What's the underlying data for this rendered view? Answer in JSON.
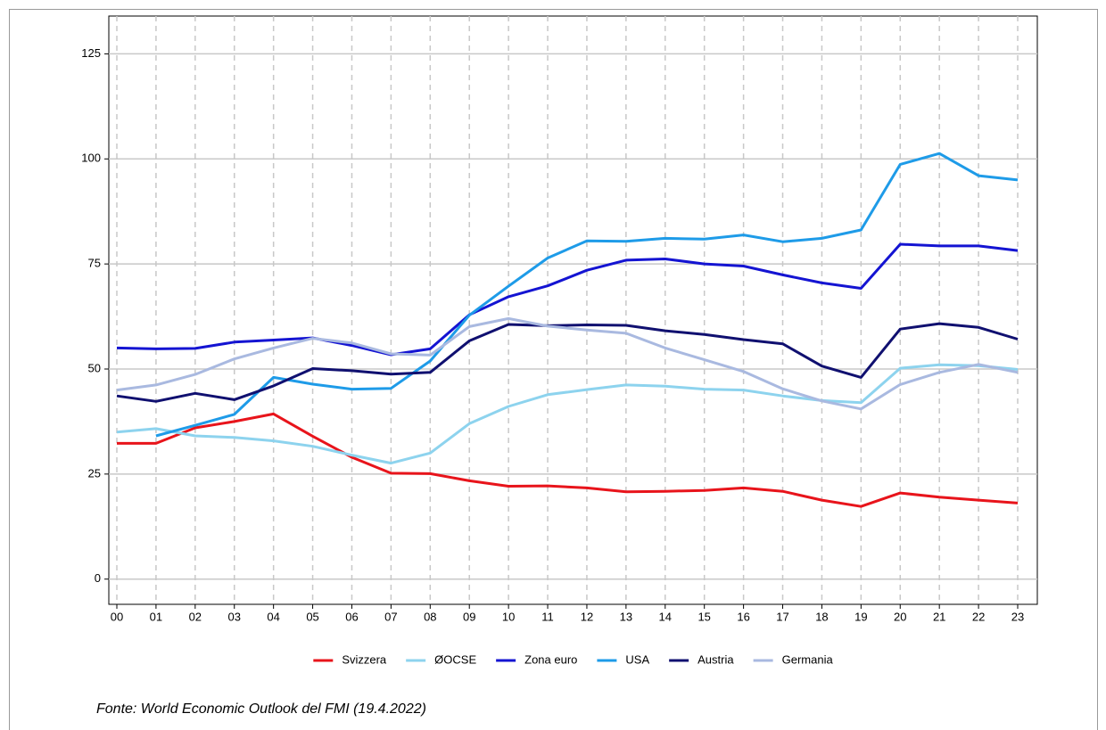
{
  "chart_data": {
    "type": "line",
    "categories": [
      "00",
      "01",
      "02",
      "03",
      "04",
      "05",
      "06",
      "07",
      "08",
      "09",
      "10",
      "11",
      "12",
      "13",
      "14",
      "15",
      "16",
      "17",
      "18",
      "19",
      "20",
      "21",
      "22",
      "23"
    ],
    "series": [
      {
        "name": "Svizzera",
        "color": "#e8141b",
        "values": [
          32.3,
          32.3,
          36,
          37.5,
          39.3,
          34,
          29,
          25.2,
          25.1,
          23.4,
          22.1,
          22.2,
          21.7,
          20.8,
          20.9,
          21.1,
          21.7,
          20.9,
          18.8,
          17.3,
          20.5,
          19.5,
          18.8,
          18.1
        ]
      },
      {
        "name": "ØOCSE",
        "color": "#8dd3ee",
        "values": [
          35,
          35.8,
          34.1,
          33.7,
          32.9,
          31.6,
          29.5,
          27.6,
          30,
          37,
          41.1,
          43.9,
          45.1,
          46.2,
          45.9,
          45.2,
          45,
          43.6,
          42.5,
          42,
          50.2,
          51,
          50.8,
          49.9
        ]
      },
      {
        "name": "Zona euro",
        "color": "#1414d2",
        "values": [
          55,
          54.8,
          54.9,
          56.4,
          56.9,
          57.4,
          55.6,
          53.4,
          54.8,
          62.9,
          67.2,
          69.8,
          73.5,
          75.9,
          76.2,
          75,
          74.5,
          72.4,
          70.5,
          69.2,
          79.7,
          79.3,
          79.3,
          78.2
        ]
      },
      {
        "name": "USA",
        "color": "#1e9be8",
        "values": [
          null,
          34.1,
          36.6,
          39.2,
          48,
          46.4,
          45.2,
          45.4,
          51.9,
          62.8,
          69.7,
          76.4,
          80.5,
          80.4,
          81.1,
          80.9,
          81.9,
          80.3,
          81.1,
          83.1,
          98.7,
          101.3,
          96,
          95
        ]
      },
      {
        "name": "Austria",
        "color": "#101070",
        "values": [
          43.6,
          42.3,
          44.2,
          42.7,
          46,
          50.1,
          49.6,
          48.8,
          49.2,
          56.7,
          60.6,
          60.3,
          60.5,
          60.4,
          59.1,
          58.2,
          57,
          56,
          50.7,
          48,
          59.5,
          60.8,
          59.9,
          57.1
        ]
      },
      {
        "name": "Germania",
        "color": "#a9b9e0",
        "values": [
          45,
          46.2,
          48.7,
          52.4,
          55,
          57.3,
          56.2,
          53.6,
          53.3,
          60.1,
          62,
          60.2,
          59.3,
          58.5,
          55,
          52.2,
          49.4,
          45.3,
          42.4,
          40.5,
          46.3,
          49.2,
          51.1,
          49.2
        ]
      }
    ],
    "ylim": [
      -6,
      134
    ],
    "yticks": [
      0,
      25,
      50,
      75,
      100,
      125
    ],
    "grid": true,
    "source": "Fonte: World Economic Outlook del FMI (19.4.2022)"
  }
}
